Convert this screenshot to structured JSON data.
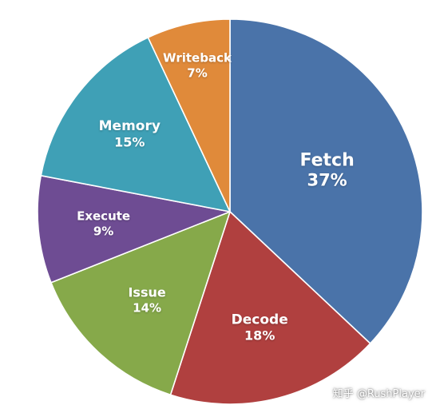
{
  "chart_data": {
    "type": "pie",
    "start_angle_deg": 0,
    "direction": "clockwise",
    "slices": [
      {
        "name": "Fetch",
        "value": 37,
        "label": "37%",
        "color": "#4A73A9"
      },
      {
        "name": "Decode",
        "value": 18,
        "label": "18%",
        "color": "#B0403F"
      },
      {
        "name": "Issue",
        "value": 14,
        "label": "14%",
        "color": "#86A94A"
      },
      {
        "name": "Execute",
        "value": 9,
        "label": "9%",
        "color": "#6E4C93"
      },
      {
        "name": "Memory",
        "value": 15,
        "label": "15%",
        "color": "#3FA0B6"
      },
      {
        "name": "Writeback",
        "value": 7,
        "label": "7%",
        "color": "#E08A3A"
      }
    ]
  },
  "watermark": "知乎 @RushPlayer"
}
